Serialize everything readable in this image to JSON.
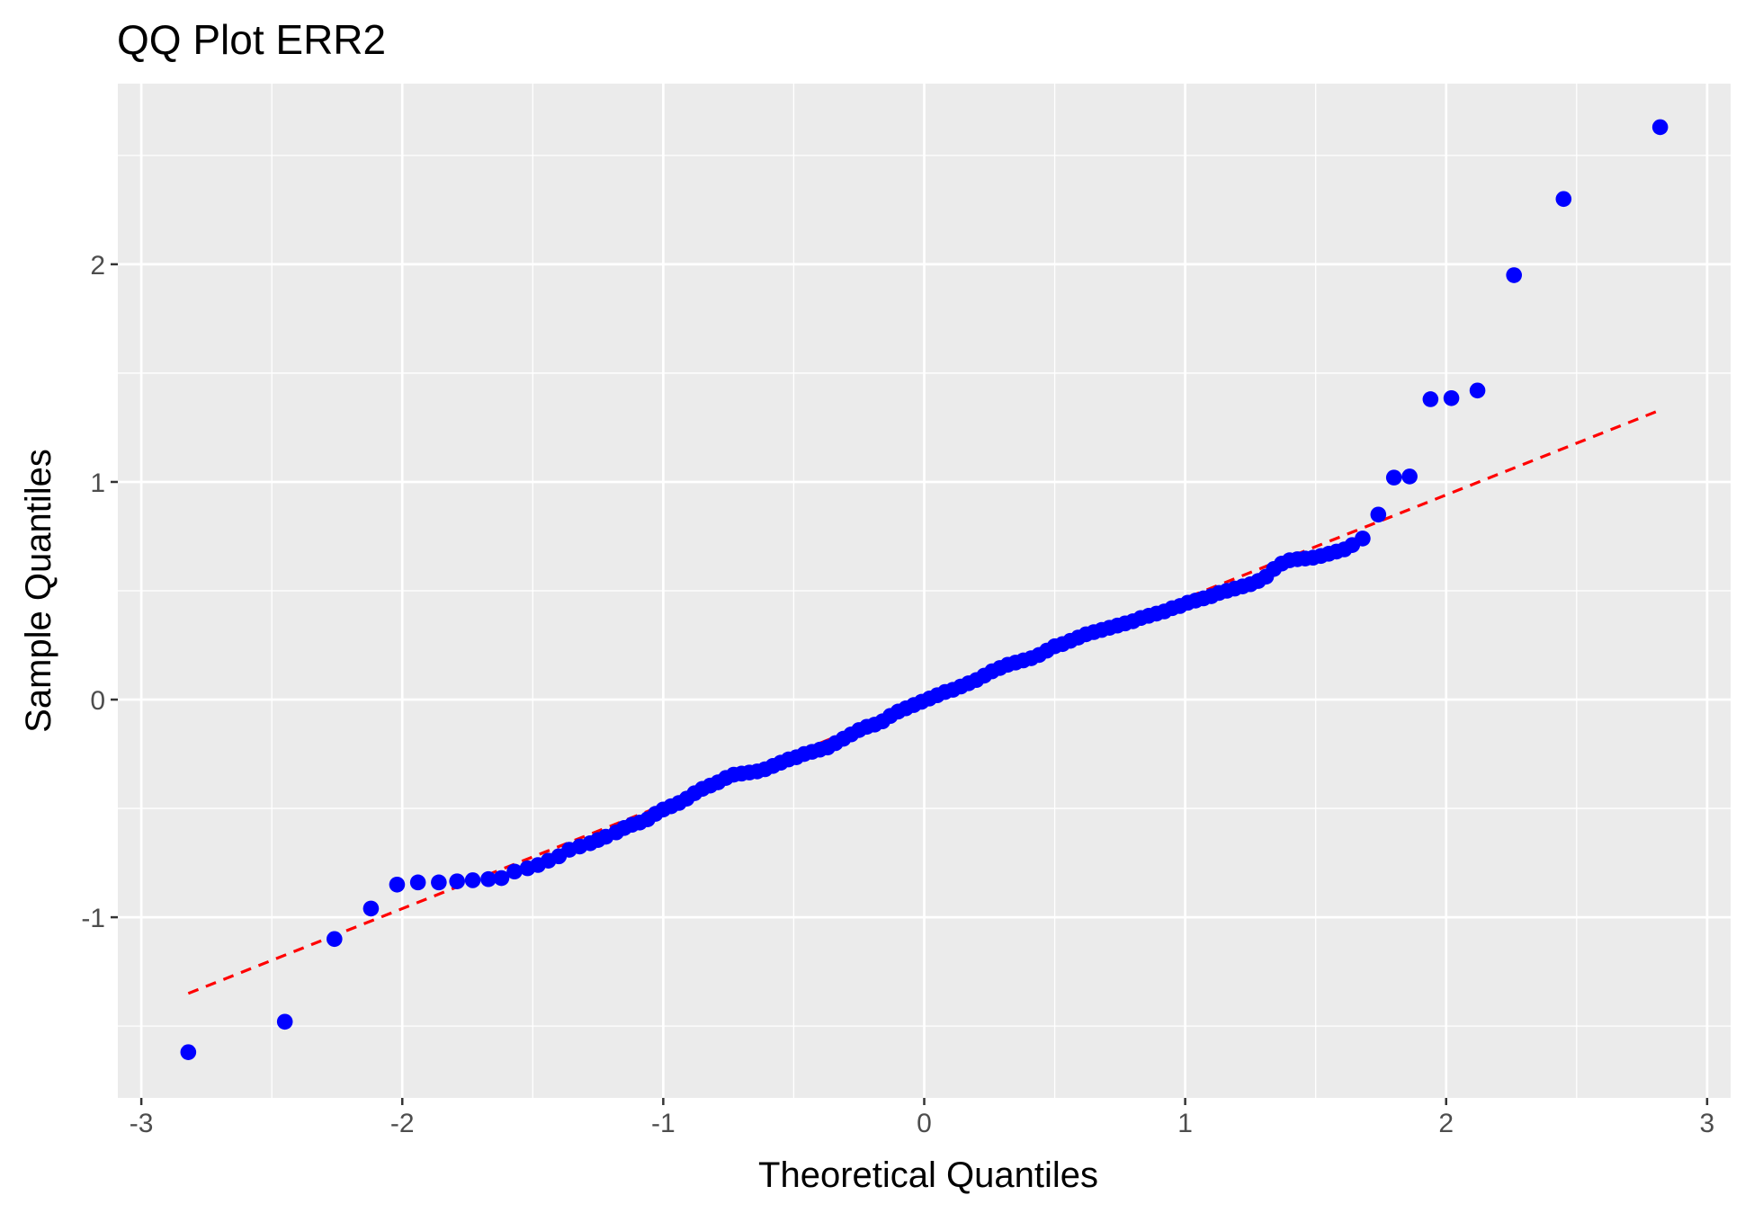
{
  "chart_data": {
    "type": "scatter",
    "title": "QQ Plot ERR2",
    "xlabel": "Theoretical Quantiles",
    "ylabel": "Sample Quantiles",
    "xlim": [
      -3.09,
      3.09
    ],
    "ylim": [
      -1.83,
      2.83
    ],
    "x_ticks": [
      -3,
      -2,
      -1,
      0,
      1,
      2,
      3
    ],
    "x_tick_labels": [
      "-3",
      "-2",
      "-1",
      "0",
      "1",
      "2",
      "3"
    ],
    "y_ticks": [
      -1,
      0,
      1,
      2
    ],
    "y_tick_labels": [
      "-1",
      "0",
      "1",
      "2"
    ],
    "grid": true,
    "background": "#ebebeb",
    "point_color": "#0000ff",
    "line_color": "#ff0000",
    "reference_line": {
      "style": "dashed",
      "x": [
        -2.82,
        2.82
      ],
      "y": [
        -1.35,
        1.33
      ]
    },
    "points": [
      [
        -2.82,
        -1.62
      ],
      [
        -2.45,
        -1.48
      ],
      [
        -2.26,
        -1.1
      ],
      [
        -2.12,
        -0.96
      ],
      [
        -2.02,
        -0.85
      ],
      [
        -1.94,
        -0.84
      ],
      [
        -1.86,
        -0.84
      ],
      [
        -1.79,
        -0.835
      ],
      [
        -1.73,
        -0.83
      ],
      [
        -1.67,
        -0.825
      ],
      [
        -1.62,
        -0.82
      ],
      [
        -1.57,
        -0.79
      ],
      [
        -1.52,
        -0.775
      ],
      [
        -1.48,
        -0.76
      ],
      [
        -1.44,
        -0.74
      ],
      [
        -1.4,
        -0.72
      ],
      [
        -1.36,
        -0.69
      ],
      [
        -1.32,
        -0.675
      ],
      [
        -1.28,
        -0.66
      ],
      [
        -1.25,
        -0.645
      ],
      [
        -1.22,
        -0.63
      ],
      [
        -1.18,
        -0.61
      ],
      [
        -1.15,
        -0.59
      ],
      [
        -1.12,
        -0.575
      ],
      [
        -1.09,
        -0.565
      ],
      [
        -1.06,
        -0.55
      ],
      [
        -1.03,
        -0.525
      ],
      [
        -1.0,
        -0.505
      ],
      [
        -0.97,
        -0.49
      ],
      [
        -0.94,
        -0.475
      ],
      [
        -0.91,
        -0.455
      ],
      [
        -0.88,
        -0.43
      ],
      [
        -0.85,
        -0.41
      ],
      [
        -0.82,
        -0.395
      ],
      [
        -0.79,
        -0.38
      ],
      [
        -0.76,
        -0.36
      ],
      [
        -0.73,
        -0.345
      ],
      [
        -0.7,
        -0.34
      ],
      [
        -0.67,
        -0.335
      ],
      [
        -0.64,
        -0.33
      ],
      [
        -0.61,
        -0.32
      ],
      [
        -0.58,
        -0.305
      ],
      [
        -0.55,
        -0.29
      ],
      [
        -0.52,
        -0.275
      ],
      [
        -0.49,
        -0.265
      ],
      [
        -0.46,
        -0.25
      ],
      [
        -0.43,
        -0.24
      ],
      [
        -0.4,
        -0.23
      ],
      [
        -0.37,
        -0.22
      ],
      [
        -0.34,
        -0.2
      ],
      [
        -0.31,
        -0.18
      ],
      [
        -0.28,
        -0.16
      ],
      [
        -0.25,
        -0.14
      ],
      [
        -0.22,
        -0.125
      ],
      [
        -0.19,
        -0.115
      ],
      [
        -0.16,
        -0.1
      ],
      [
        -0.13,
        -0.075
      ],
      [
        -0.1,
        -0.055
      ],
      [
        -0.07,
        -0.04
      ],
      [
        -0.04,
        -0.025
      ],
      [
        -0.01,
        -0.01
      ],
      [
        0.02,
        0.005
      ],
      [
        0.05,
        0.02
      ],
      [
        0.08,
        0.035
      ],
      [
        0.11,
        0.045
      ],
      [
        0.14,
        0.06
      ],
      [
        0.17,
        0.075
      ],
      [
        0.2,
        0.09
      ],
      [
        0.23,
        0.11
      ],
      [
        0.26,
        0.13
      ],
      [
        0.29,
        0.145
      ],
      [
        0.32,
        0.16
      ],
      [
        0.35,
        0.17
      ],
      [
        0.38,
        0.18
      ],
      [
        0.41,
        0.19
      ],
      [
        0.44,
        0.205
      ],
      [
        0.47,
        0.225
      ],
      [
        0.5,
        0.245
      ],
      [
        0.53,
        0.255
      ],
      [
        0.56,
        0.27
      ],
      [
        0.59,
        0.285
      ],
      [
        0.62,
        0.3
      ],
      [
        0.65,
        0.31
      ],
      [
        0.68,
        0.32
      ],
      [
        0.71,
        0.33
      ],
      [
        0.74,
        0.34
      ],
      [
        0.77,
        0.35
      ],
      [
        0.8,
        0.36
      ],
      [
        0.83,
        0.375
      ],
      [
        0.86,
        0.385
      ],
      [
        0.89,
        0.395
      ],
      [
        0.92,
        0.405
      ],
      [
        0.95,
        0.42
      ],
      [
        0.98,
        0.43
      ],
      [
        1.01,
        0.445
      ],
      [
        1.04,
        0.455
      ],
      [
        1.07,
        0.465
      ],
      [
        1.1,
        0.475
      ],
      [
        1.13,
        0.49
      ],
      [
        1.16,
        0.5
      ],
      [
        1.19,
        0.51
      ],
      [
        1.22,
        0.52
      ],
      [
        1.25,
        0.53
      ],
      [
        1.28,
        0.545
      ],
      [
        1.31,
        0.565
      ],
      [
        1.34,
        0.6
      ],
      [
        1.37,
        0.625
      ],
      [
        1.4,
        0.64
      ],
      [
        1.43,
        0.645
      ],
      [
        1.46,
        0.648
      ],
      [
        1.49,
        0.652
      ],
      [
        1.52,
        0.66
      ],
      [
        1.55,
        0.67
      ],
      [
        1.58,
        0.68
      ],
      [
        1.61,
        0.69
      ],
      [
        1.64,
        0.71
      ],
      [
        1.68,
        0.74
      ],
      [
        1.74,
        0.85
      ],
      [
        1.8,
        1.02
      ],
      [
        1.86,
        1.025
      ],
      [
        1.94,
        1.38
      ],
      [
        2.02,
        1.385
      ],
      [
        2.12,
        1.42
      ],
      [
        2.26,
        1.95
      ],
      [
        2.45,
        2.3
      ],
      [
        2.82,
        2.63
      ]
    ]
  }
}
